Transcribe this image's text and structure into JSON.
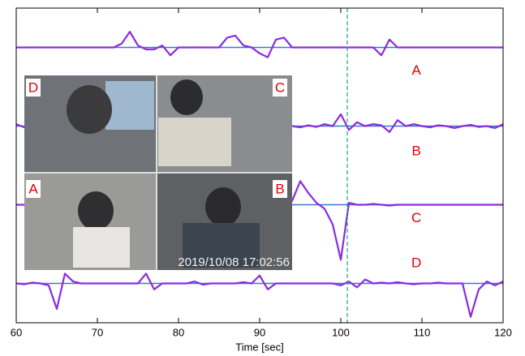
{
  "chart_data": {
    "type": "line",
    "xlabel": "Time [sec]",
    "xlim": [
      60,
      120
    ],
    "xticks": [
      60,
      70,
      80,
      90,
      100,
      110,
      120
    ],
    "ylim": [
      0,
      8
    ],
    "marker_line": {
      "x": 100.8,
      "color": "#1aa37a"
    },
    "baseline_color": "#3a78c8",
    "x": [
      60,
      61,
      62,
      63,
      64,
      65,
      66,
      67,
      68,
      69,
      70,
      71,
      72,
      73,
      74,
      75,
      76,
      77,
      78,
      79,
      80,
      81,
      82,
      83,
      84,
      85,
      86,
      87,
      88,
      89,
      90,
      91,
      92,
      93,
      94,
      95,
      96,
      97,
      98,
      99,
      100,
      101,
      102,
      103,
      104,
      105,
      106,
      107,
      108,
      109,
      110,
      111,
      112,
      113,
      114,
      115,
      116,
      117,
      118,
      119,
      120
    ],
    "series": [
      {
        "name": "A",
        "color": "#8a2be2",
        "baseline": 7,
        "values": [
          7,
          7,
          7,
          7,
          7,
          7,
          7,
          7,
          7,
          7,
          7,
          7,
          7,
          7.1,
          7.4,
          7.05,
          6.95,
          6.95,
          7.05,
          6.8,
          7,
          7,
          7,
          7,
          7,
          7,
          7.25,
          7.3,
          7.05,
          7,
          6.85,
          6.75,
          7.2,
          7.25,
          7,
          7,
          7,
          7,
          7,
          7,
          7,
          7,
          7,
          7,
          7,
          6.8,
          7.2,
          7,
          7,
          7,
          7,
          7,
          7,
          7,
          7,
          7,
          7,
          7,
          7,
          7,
          7
        ]
      },
      {
        "name": "B",
        "color": "#8a2be2",
        "baseline": 5,
        "values": [
          5.05,
          4.97,
          5,
          5,
          5,
          5,
          5,
          5,
          5,
          5,
          5,
          5,
          5,
          5,
          5,
          5,
          5,
          5,
          5,
          5,
          5,
          5,
          5,
          5,
          5,
          5,
          5,
          5,
          5,
          5,
          5,
          5,
          5,
          5,
          5.0,
          4.97,
          5.02,
          4.98,
          5.05,
          5.0,
          5.3,
          4.9,
          5.1,
          5.0,
          5.05,
          5.02,
          4.85,
          5.15,
          5.0,
          5.05,
          5.0,
          4.97,
          5.02,
          5.0,
          4.95,
          5.0,
          5.03,
          4.98,
          5.0,
          4.95,
          5.05
        ]
      },
      {
        "name": "C",
        "color": "#8a2be2",
        "baseline": 3,
        "values": [
          3,
          3,
          3,
          3,
          3,
          3,
          3,
          3,
          3,
          3,
          3,
          3,
          3,
          3,
          3,
          3,
          3,
          3,
          3,
          3,
          3,
          3,
          3,
          3,
          3,
          3,
          3,
          3,
          3,
          3,
          3,
          3,
          3,
          3,
          3.1,
          3.6,
          3.3,
          3.05,
          2.9,
          2.5,
          1.6,
          3.05,
          3.0,
          3.0,
          3.02,
          3.0,
          2.98,
          3,
          3,
          3,
          3,
          3,
          3,
          3,
          3,
          3,
          3,
          3,
          3,
          3,
          3
        ]
      },
      {
        "name": "D",
        "color": "#8a2be2",
        "baseline": 1,
        "values": [
          1.0,
          0.98,
          1.02,
          1.0,
          0.95,
          0.35,
          1.25,
          1.05,
          1,
          1,
          1,
          1,
          1,
          1,
          1,
          1,
          1.25,
          0.85,
          1,
          1,
          1,
          1,
          1.05,
          0.97,
          1,
          1,
          1,
          1,
          1.03,
          1.0,
          1.2,
          0.85,
          1,
          1,
          1,
          1,
          1,
          1,
          1,
          1,
          0.95,
          1.05,
          0.9,
          1.1,
          1.0,
          1.02,
          1,
          1.03,
          1,
          0.98,
          1,
          1,
          1.02,
          1,
          1,
          1,
          0.15,
          0.85,
          1.05,
          0.95,
          1.05
        ]
      }
    ]
  },
  "inset": {
    "panels": [
      "D",
      "C",
      "A",
      "B"
    ],
    "timestamp": "2019/10/08 17:02:56"
  }
}
